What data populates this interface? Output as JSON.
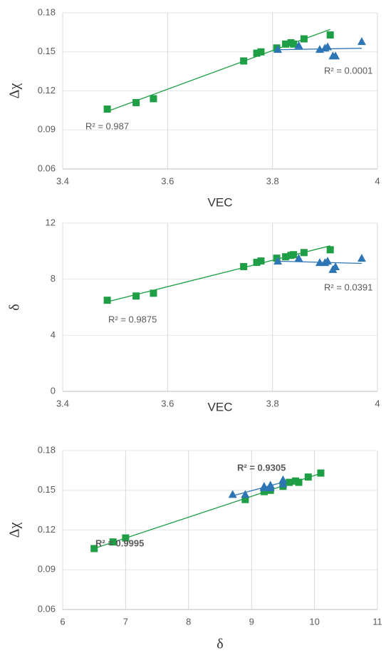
{
  "chart_data": [
    {
      "type": "scatter",
      "x_label": "VEC",
      "y_label": "Δχ",
      "xlim": [
        3.4,
        4
      ],
      "xticks": [
        3.4,
        3.6,
        3.8,
        4
      ],
      "ylim": [
        0.06,
        0.18
      ],
      "yticks": [
        0.06,
        0.09,
        0.12,
        0.15,
        0.18
      ],
      "grid": true,
      "series": [
        {
          "color": "#1e9e45",
          "marker": "square",
          "trendline_label": "R² = 0.987",
          "x": [
            3.485,
            3.54,
            3.573,
            3.745,
            3.77,
            3.778,
            3.808,
            3.825,
            3.835,
            3.84,
            3.86,
            3.91
          ],
          "values": [
            0.106,
            0.111,
            0.114,
            0.143,
            0.149,
            0.15,
            0.153,
            0.156,
            0.157,
            0.156,
            0.16,
            0.163
          ]
        },
        {
          "color": "#2e75b6",
          "marker": "triangle",
          "trendline_label": "R² = 0.0001",
          "x": [
            3.81,
            3.85,
            3.89,
            3.9,
            3.905,
            3.915,
            3.92,
            3.97
          ],
          "values": [
            0.152,
            0.155,
            0.152,
            0.153,
            0.154,
            0.147,
            0.147,
            0.158
          ]
        }
      ]
    },
    {
      "type": "scatter",
      "x_label": "VEC",
      "y_label": "δ",
      "xlim": [
        3.4,
        4
      ],
      "xticks": [
        3.4,
        3.6,
        3.8,
        4
      ],
      "ylim": [
        0,
        12
      ],
      "yticks": [
        0,
        4,
        8,
        12
      ],
      "grid": true,
      "series": [
        {
          "color": "#1e9e45",
          "marker": "square",
          "trendline_label": "R² = 0.9875",
          "x": [
            3.485,
            3.54,
            3.573,
            3.745,
            3.77,
            3.778,
            3.808,
            3.825,
            3.835,
            3.84,
            3.86,
            3.91
          ],
          "values": [
            6.5,
            6.8,
            7.0,
            8.9,
            9.2,
            9.3,
            9.5,
            9.6,
            9.7,
            9.75,
            9.9,
            10.1
          ]
        },
        {
          "color": "#2e75b6",
          "marker": "triangle",
          "trendline_label": "R² = 0.0391",
          "x": [
            3.81,
            3.85,
            3.89,
            3.9,
            3.905,
            3.915,
            3.92,
            3.97
          ],
          "values": [
            9.3,
            9.5,
            9.2,
            9.2,
            9.3,
            8.7,
            8.9,
            9.5
          ]
        }
      ]
    },
    {
      "type": "scatter",
      "x_label": "δ",
      "y_label": "Δχ",
      "xlim": [
        6,
        11
      ],
      "xticks": [
        6,
        7,
        8,
        9,
        10,
        11
      ],
      "ylim": [
        0.06,
        0.18
      ],
      "yticks": [
        0.06,
        0.09,
        0.12,
        0.15,
        0.18
      ],
      "grid": true,
      "series": [
        {
          "color": "#1e9e45",
          "marker": "square",
          "trendline_label": "R² = 0.9995",
          "x": [
            6.5,
            6.8,
            7.0,
            8.9,
            9.2,
            9.3,
            9.5,
            9.6,
            9.7,
            9.75,
            9.9,
            10.1
          ],
          "values": [
            0.106,
            0.111,
            0.114,
            0.143,
            0.149,
            0.15,
            0.153,
            0.156,
            0.157,
            0.156,
            0.16,
            0.163
          ]
        },
        {
          "color": "#2e75b6",
          "marker": "triangle",
          "trendline_label": "R² = 0.9305",
          "x": [
            9.3,
            9.5,
            9.2,
            9.2,
            9.3,
            8.7,
            8.9,
            9.5
          ],
          "values": [
            0.152,
            0.155,
            0.152,
            0.153,
            0.154,
            0.147,
            0.147,
            0.158
          ]
        }
      ]
    }
  ]
}
